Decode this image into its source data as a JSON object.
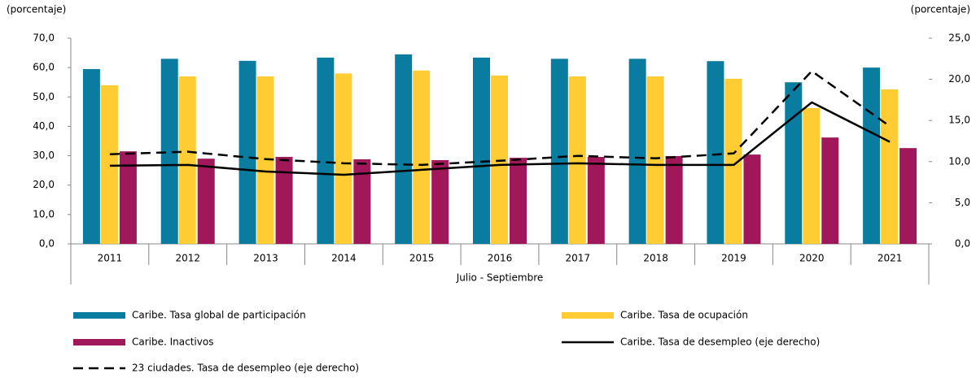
{
  "chart_data": {
    "type": "bar",
    "y_label": "(porcentaje)",
    "y2_label": "(porcentaje)",
    "x_label": "Julio - Septiembre",
    "categories": [
      "2011",
      "2012",
      "2013",
      "2014",
      "2015",
      "2016",
      "2017",
      "2018",
      "2019",
      "2020",
      "2021"
    ],
    "series": [
      {
        "name": "Caribe. Tasa global de participación",
        "kind": "bar",
        "color": "#0a7ca0",
        "values": [
          59.5,
          63,
          62.3,
          63.4,
          64.5,
          63.4,
          63,
          63,
          62.2,
          55,
          60
        ]
      },
      {
        "name": "Caribe. Tasa de ocupación",
        "kind": "bar",
        "color": "#ffcc33",
        "values": [
          54,
          57,
          57,
          58,
          59,
          57.3,
          57,
          57,
          56.2,
          46.2,
          52.6
        ]
      },
      {
        "name": "Caribe. Inactivos",
        "kind": "bar",
        "color": "#a0185a",
        "values": [
          31.5,
          29,
          29.6,
          28.8,
          28.5,
          29.3,
          29.6,
          29.9,
          30.4,
          36.2,
          32.6
        ]
      },
      {
        "name": "Caribe. Tasa de desempleo (eje derecho)",
        "kind": "line",
        "axis": "y2",
        "dashed": false,
        "color": "#000000",
        "values": [
          9.5,
          9.6,
          8.8,
          8.4,
          9.0,
          9.6,
          9.8,
          9.6,
          9.6,
          17.2,
          12.4
        ]
      },
      {
        "name": "23 ciudades. Tasa de desempleo (eje derecho)",
        "kind": "line",
        "axis": "y2",
        "dashed": true,
        "color": "#000000",
        "values": [
          10.9,
          11.2,
          10.3,
          9.8,
          9.6,
          10.1,
          10.7,
          10.4,
          11,
          21,
          14.3
        ]
      }
    ],
    "ylim": [
      0,
      70
    ],
    "yticks": [
      {
        "value": 0,
        "label": "0,0"
      },
      {
        "value": 10,
        "label": "10,0"
      },
      {
        "value": 20,
        "label": "20,0"
      },
      {
        "value": 30,
        "label": "30,0"
      },
      {
        "value": 40,
        "label": "40,0"
      },
      {
        "value": 50,
        "label": "50,0"
      },
      {
        "value": 60,
        "label": "60,0"
      },
      {
        "value": 70,
        "label": "70,0"
      }
    ],
    "y2lim": [
      0,
      25
    ],
    "y2ticks": [
      {
        "value": 0,
        "label": "0,0"
      },
      {
        "value": 5,
        "label": "5,0"
      },
      {
        "value": 10,
        "label": "10,0"
      },
      {
        "value": 15,
        "label": "15,0"
      },
      {
        "value": 20,
        "label": "20,0"
      },
      {
        "value": 25,
        "label": "25,0"
      }
    ],
    "grid": false
  }
}
